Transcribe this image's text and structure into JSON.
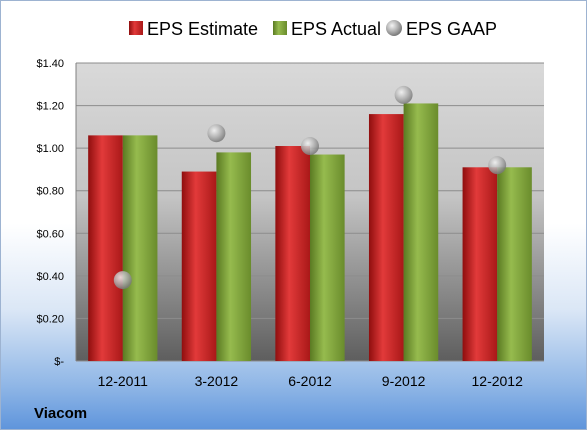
{
  "chart_data": {
    "type": "bar",
    "title": "",
    "xlabel": "",
    "ylabel": "",
    "categories": [
      "12-2011",
      "3-2012",
      "6-2012",
      "9-2012",
      "12-2012"
    ],
    "series": [
      {
        "name": "EPS Estimate",
        "kind": "bar",
        "color": "#d42a2a",
        "values": [
          1.06,
          0.89,
          1.01,
          1.16,
          0.91
        ]
      },
      {
        "name": "EPS Actual",
        "kind": "bar",
        "color": "#7fa33b",
        "values": [
          1.06,
          0.98,
          0.97,
          1.21,
          0.91
        ]
      },
      {
        "name": "EPS GAAP",
        "kind": "marker",
        "color": "#a9a9a9",
        "values": [
          0.38,
          1.07,
          1.01,
          1.25,
          0.92
        ]
      }
    ],
    "ylim": [
      0,
      1.4
    ],
    "yticks": [
      {
        "value": 0,
        "label": "$-"
      },
      {
        "value": 0.2,
        "label": "$0.20"
      },
      {
        "value": 0.4,
        "label": "$0.40"
      },
      {
        "value": 0.6,
        "label": "$0.60"
      },
      {
        "value": 0.8,
        "label": "$0.80"
      },
      {
        "value": 1.0,
        "label": "$1.00"
      },
      {
        "value": 1.2,
        "label": "$1.20"
      },
      {
        "value": 1.4,
        "label": "$1.40"
      }
    ],
    "grid": true,
    "legend_position": "top"
  },
  "company": "Viacom"
}
